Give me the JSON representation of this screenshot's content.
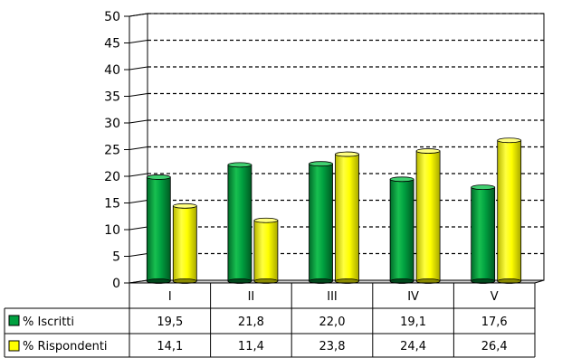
{
  "chart_data": {
    "type": "bar",
    "title": "",
    "xlabel": "",
    "ylabel": "",
    "ylim": [
      0,
      50
    ],
    "yticks": [
      0,
      5,
      10,
      15,
      20,
      25,
      30,
      35,
      40,
      45,
      50
    ],
    "categories": [
      "I",
      "II",
      "III",
      "IV",
      "V"
    ],
    "grid": true,
    "legend": "data-table-left",
    "series": [
      {
        "name": "% Iscritti",
        "values": [
          19.5,
          21.8,
          22.0,
          19.1,
          17.6
        ],
        "labels": [
          "19,5",
          "21,8",
          "22,0",
          "19,1",
          "17,6"
        ],
        "color": "#00a040"
      },
      {
        "name": "% Rispondenti",
        "values": [
          14.1,
          11.4,
          23.8,
          24.4,
          26.4
        ],
        "labels": [
          "14,1",
          "11,4",
          "23,8",
          "24,4",
          "26,4"
        ],
        "color": "#ffff00"
      }
    ]
  }
}
